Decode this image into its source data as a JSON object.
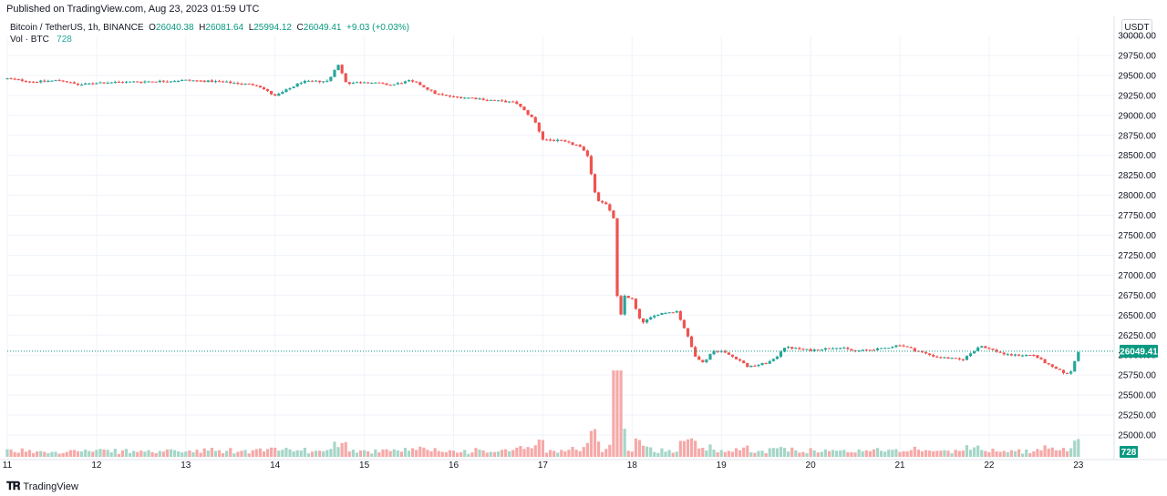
{
  "header": {
    "published": "Published on TradingView.com, Aug 23, 2023 01:59 UTC"
  },
  "legend": {
    "symbol": "Bitcoin / TetherUS, 1h, BINANCE",
    "o_label": "O",
    "o": "26040.38",
    "h_label": "H",
    "h": "26081.64",
    "l_label": "L",
    "l": "25994.12",
    "c_label": "C",
    "c": "26049.41",
    "change": "+9.03 (+0.03%)",
    "vol_label": "Vol · BTC",
    "vol_value": "728"
  },
  "currency_button": "USDT",
  "footer": {
    "brand": "TradingView"
  },
  "colors": {
    "up": "#26a69a",
    "down": "#ef5350",
    "vol_up": "#a5d6c8",
    "vol_down": "#f5a9a8",
    "grid": "#f0f3fa",
    "last_line": "#089981"
  },
  "chart_data": {
    "type": "candlestick",
    "symbol": "BTCUSDT",
    "interval": "1h",
    "y_axis": {
      "min": 25000,
      "max": 30000,
      "position": "right",
      "ticks": [
        "25000.00",
        "25250.00",
        "25500.00",
        "25750.00",
        "26000.00",
        "26250.00",
        "26500.00",
        "26750.00",
        "27000.00",
        "27250.00",
        "27500.00",
        "27750.00",
        "28000.00",
        "28250.00",
        "28500.00",
        "28750.00",
        "29000.00",
        "29250.00",
        "29500.00",
        "29750.00",
        "30000.00"
      ]
    },
    "x_axis": {
      "day_labels": [
        "11",
        "12",
        "13",
        "14",
        "15",
        "16",
        "17",
        "18",
        "19",
        "20",
        "21",
        "22",
        "23"
      ]
    },
    "last_price": {
      "value": 26049.41,
      "label": "26049.41"
    },
    "last_volume": {
      "value": 728,
      "label": "728"
    },
    "grid": true,
    "close_path": [
      [
        11.0,
        29460
      ],
      [
        11.3,
        29420
      ],
      [
        11.6,
        29440
      ],
      [
        11.8,
        29380
      ],
      [
        12.0,
        29410
      ],
      [
        12.4,
        29420
      ],
      [
        12.8,
        29430
      ],
      [
        13.0,
        29440
      ],
      [
        13.4,
        29420
      ],
      [
        13.8,
        29380
      ],
      [
        14.0,
        29240
      ],
      [
        14.3,
        29420
      ],
      [
        14.6,
        29430
      ],
      [
        14.7,
        29650
      ],
      [
        14.8,
        29400
      ],
      [
        15.0,
        29420
      ],
      [
        15.3,
        29380
      ],
      [
        15.5,
        29430
      ],
      [
        15.6,
        29400
      ],
      [
        15.8,
        29270
      ],
      [
        16.0,
        29230
      ],
      [
        16.2,
        29220
      ],
      [
        16.5,
        29180
      ],
      [
        16.7,
        29160
      ],
      [
        16.8,
        29050
      ],
      [
        16.9,
        28950
      ],
      [
        17.0,
        28700
      ],
      [
        17.2,
        28680
      ],
      [
        17.4,
        28620
      ],
      [
        17.5,
        28500
      ],
      [
        17.6,
        27950
      ],
      [
        17.7,
        27900
      ],
      [
        17.8,
        27700
      ],
      [
        17.85,
        26250
      ],
      [
        17.9,
        26750
      ],
      [
        18.0,
        26700
      ],
      [
        18.1,
        26400
      ],
      [
        18.3,
        26520
      ],
      [
        18.5,
        26550
      ],
      [
        18.6,
        26300
      ],
      [
        18.7,
        26000
      ],
      [
        18.8,
        25900
      ],
      [
        18.9,
        26050
      ],
      [
        19.0,
        26050
      ],
      [
        19.2,
        25940
      ],
      [
        19.3,
        25850
      ],
      [
        19.5,
        25900
      ],
      [
        19.6,
        25950
      ],
      [
        19.7,
        26100
      ],
      [
        20.0,
        26060
      ],
      [
        20.3,
        26100
      ],
      [
        20.5,
        26050
      ],
      [
        20.8,
        26080
      ],
      [
        21.0,
        26130
      ],
      [
        21.2,
        26050
      ],
      [
        21.4,
        25980
      ],
      [
        21.7,
        25940
      ],
      [
        21.9,
        26120
      ],
      [
        22.2,
        26000
      ],
      [
        22.5,
        26000
      ],
      [
        22.7,
        25850
      ],
      [
        22.9,
        25750
      ],
      [
        23.0,
        26049
      ]
    ]
  }
}
